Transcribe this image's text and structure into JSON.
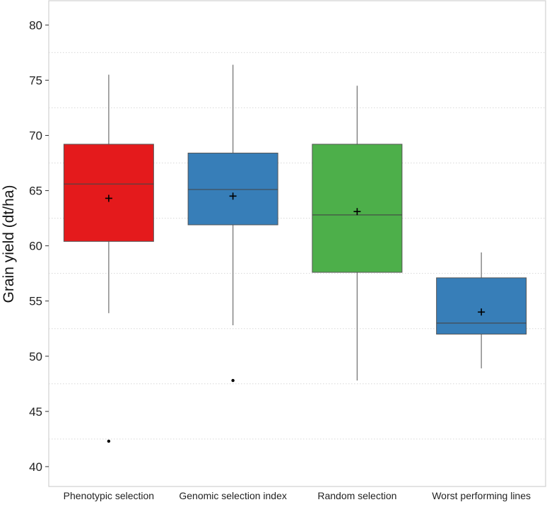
{
  "chart_data": {
    "type": "box",
    "title": "",
    "xlabel": "",
    "ylabel": "Grain yield (dt/ha)",
    "ylim": [
      38.2,
      82.2
    ],
    "yticks": [
      40,
      45,
      50,
      55,
      60,
      65,
      70,
      75,
      80
    ],
    "minor_grid": [
      42.5,
      47.5,
      52.5,
      57.5,
      62.5,
      67.5,
      72.5,
      77.5
    ],
    "grid": "minor dotted",
    "categories": [
      "Phenotypic selection",
      "Genomic selection index",
      "Random selection",
      "Worst performing lines"
    ],
    "colors": [
      "#e41a1c",
      "#377eb8",
      "#4daf4a",
      "#377eb8"
    ],
    "boxes": [
      {
        "whisker_low": 53.9,
        "q1": 60.4,
        "median": 65.6,
        "q3": 69.2,
        "whisker_high": 75.5,
        "mean": 64.3,
        "outliers": [
          42.3
        ]
      },
      {
        "whisker_low": 52.8,
        "q1": 61.9,
        "median": 65.1,
        "q3": 68.4,
        "whisker_high": 76.4,
        "mean": 64.5,
        "outliers": [
          47.8
        ]
      },
      {
        "whisker_low": 47.8,
        "q1": 57.6,
        "median": 62.8,
        "q3": 69.2,
        "whisker_high": 74.5,
        "mean": 63.1,
        "outliers": []
      },
      {
        "whisker_low": 48.9,
        "q1": 52.0,
        "median": 53.0,
        "q3": 57.1,
        "whisker_high": 59.4,
        "mean": 54.0,
        "outliers": []
      }
    ]
  }
}
